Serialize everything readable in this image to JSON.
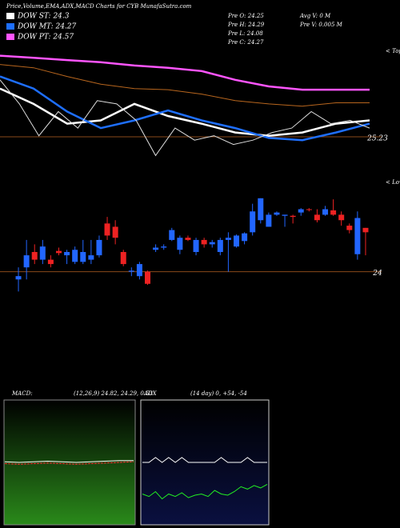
{
  "chart_data": [
    {
      "type": "candlestick",
      "title": "Price,Volume,EMA,ADX,MACD Charts for CYB MunafaSutra.com",
      "info": [
        "Pre O: 24.25",
        "Pre H: 24.29",
        "Pre L: 24.08",
        "Pre C: 24.27",
        "Avg V: 0 M",
        "Pre V: 0.005 M"
      ],
      "annotations": [
        "< Tops",
        "< Lows"
      ],
      "ylim": [
        23.56,
        26.04
      ],
      "yticks": [
        24,
        25.23
      ],
      "up_color": "#2266ff",
      "down_color": "#ee2222",
      "grid_color": "#8a4a1a",
      "open": [
        23.93,
        24.04,
        24.18,
        24.11,
        24.11,
        24.19,
        24.15,
        24.09,
        24.09,
        24.11,
        24.15,
        24.44,
        24.41,
        24.18,
        24.0,
        23.96,
        24.0,
        24.2,
        24.22,
        24.29,
        24.2,
        24.31,
        24.18,
        24.29,
        24.25,
        24.18,
        24.29,
        24.23,
        24.28,
        24.36,
        24.47,
        24.41,
        24.52,
        24.51,
        24.51,
        24.54,
        24.57,
        24.52,
        24.52,
        24.56,
        24.52,
        24.42,
        24.16,
        24.4
      ],
      "high": [
        24.04,
        24.29,
        24.25,
        24.29,
        24.15,
        24.22,
        24.2,
        24.23,
        24.29,
        24.29,
        24.33,
        24.5,
        24.47,
        24.2,
        24.04,
        24.09,
        24.01,
        24.25,
        24.25,
        24.4,
        24.33,
        24.33,
        24.31,
        24.31,
        24.29,
        24.31,
        24.36,
        24.34,
        24.36,
        24.62,
        24.67,
        24.54,
        24.55,
        24.52,
        24.52,
        24.58,
        24.58,
        24.57,
        24.6,
        24.66,
        24.55,
        24.44,
        24.55,
        24.4
      ],
      "low": [
        23.82,
        23.93,
        24.07,
        24.07,
        24.04,
        24.15,
        24.07,
        24.07,
        24.07,
        24.07,
        24.13,
        24.29,
        24.25,
        24.05,
        23.96,
        23.93,
        23.88,
        24.18,
        24.2,
        24.28,
        24.16,
        24.28,
        24.15,
        24.22,
        24.22,
        24.15,
        24.0,
        24.22,
        24.25,
        24.33,
        24.44,
        24.41,
        24.51,
        24.41,
        24.44,
        24.51,
        24.55,
        24.45,
        24.51,
        24.51,
        24.42,
        24.35,
        24.11,
        24.15
      ],
      "close": [
        23.96,
        24.15,
        24.11,
        24.23,
        24.07,
        24.17,
        24.18,
        24.2,
        24.18,
        24.15,
        24.29,
        24.33,
        24.31,
        24.07,
        24.01,
        24.07,
        23.89,
        24.22,
        24.23,
        24.38,
        24.31,
        24.29,
        24.29,
        24.25,
        24.27,
        24.29,
        24.31,
        24.33,
        24.35,
        24.55,
        24.67,
        24.52,
        24.54,
        24.52,
        24.5,
        24.57,
        24.57,
        24.47,
        24.57,
        24.52,
        24.47,
        24.38,
        24.49,
        24.36
      ],
      "series": [
        {
          "name": "DOW ST: 24.3",
          "color": "#ffffff",
          "values": [
            25.67,
            25.53,
            25.35,
            25.38,
            25.53,
            25.42,
            25.35,
            25.27,
            25.24,
            25.27,
            25.35,
            25.38
          ]
        },
        {
          "name": "DOW MT: 24.27",
          "color": "#1e6fff",
          "values": [
            25.78,
            25.67,
            25.46,
            25.31,
            25.38,
            25.47,
            25.38,
            25.31,
            25.22,
            25.2,
            25.27,
            25.35
          ]
        },
        {
          "name": "DOW PT: 24.57",
          "color": "#ff55ff",
          "values": [
            25.97,
            25.95,
            25.93,
            25.91,
            25.88,
            25.86,
            25.83,
            25.75,
            25.69,
            25.66,
            25.66,
            25.66
          ]
        },
        {
          "color": "#b8661e",
          "values": [
            25.89,
            25.86,
            25.78,
            25.71,
            25.67,
            25.66,
            25.62,
            25.56,
            25.53,
            25.51,
            25.54,
            25.54
          ]
        },
        {
          "color": "#dddddd",
          "values": [
            25.75,
            25.53,
            25.24,
            25.46,
            25.31,
            25.56,
            25.53,
            25.38,
            25.06,
            25.31,
            25.2,
            25.24,
            25.16,
            25.2,
            25.27,
            25.31,
            25.46,
            25.35,
            25.38,
            25.31
          ]
        }
      ]
    },
    {
      "type": "line",
      "title": "MACD:",
      "subtitle": "(12,26,9) 24.82, 24.29, 0.53",
      "ylim": [
        -1,
        1
      ],
      "series": [
        {
          "color": "#ff3333",
          "values": [
            -0.02,
            -0.03,
            -0.02,
            -0.01,
            -0.02,
            -0.03,
            -0.02,
            -0.01,
            0.0,
            0.01
          ]
        },
        {
          "color": "#ffffff",
          "values": [
            0.01,
            0.0,
            0.01,
            0.02,
            0.01,
            0.0,
            0.01,
            0.02,
            0.03,
            0.03
          ]
        }
      ]
    },
    {
      "type": "line",
      "title": "ADX",
      "subtitle": "(14 day) 0, +54, -54",
      "ylim": [
        0,
        100
      ],
      "series": [
        {
          "color": "#ffffff",
          "values": [
            50,
            50,
            54,
            50,
            54,
            50,
            54,
            50,
            50,
            50,
            50,
            50,
            54,
            50,
            50,
            50,
            54,
            50,
            50,
            50
          ]
        },
        {
          "color": "#22ee22",
          "values": [
            24,
            22,
            26,
            20,
            24,
            22,
            25,
            21,
            23,
            24,
            22,
            27,
            24,
            23,
            26,
            30,
            28,
            31,
            29,
            32
          ]
        }
      ]
    }
  ]
}
